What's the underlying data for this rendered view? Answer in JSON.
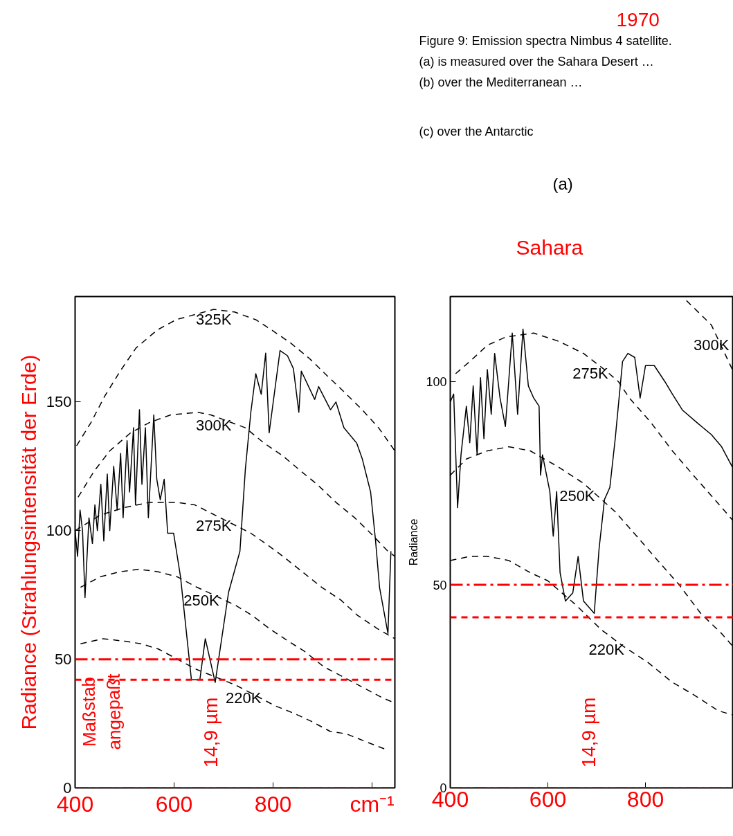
{
  "chart_data": [
    {
      "type": "line",
      "ylabel": "Radiance (Strahlungsintensität der Erde)",
      "xlim": [
        400,
        1046
      ],
      "ylim": [
        0,
        191
      ],
      "xticks": [
        400,
        600,
        800,
        {
          "value": 1000,
          "label": "cm⁻¹"
        }
      ],
      "yticks": [
        0,
        50,
        100,
        150
      ],
      "series": [
        {
          "color": "#000000",
          "line_style": "solid",
          "x": [
            400,
            405,
            410,
            415,
            420,
            428,
            435,
            440,
            445,
            452,
            458,
            465,
            470,
            478,
            485,
            492,
            497,
            505,
            510,
            518,
            522,
            530,
            535,
            542,
            548,
            559,
            565,
            572,
            580,
            587,
            599,
            613,
            635,
            652,
            663,
            683,
            710,
            733,
            744,
            755,
            765,
            776,
            785,
            792,
            814,
            829,
            841,
            852,
            857,
            884,
            892,
            916,
            927,
            943,
            969,
            980,
            997,
            1007,
            1015,
            1032,
            1038
          ],
          "values": [
            100,
            90,
            108,
            100,
            74,
            105,
            95,
            110,
            100,
            118,
            96,
            122,
            100,
            125,
            108,
            130,
            105,
            135,
            115,
            140,
            110,
            147,
            118,
            140,
            105,
            145,
            120,
            112,
            120,
            99,
            99,
            82,
            42,
            42,
            58,
            41,
            76,
            92,
            124,
            146,
            161,
            153,
            169,
            138,
            170,
            168,
            163,
            146,
            162,
            151,
            156,
            147,
            150,
            140,
            134,
            128,
            115,
            96,
            78,
            60,
            92
          ]
        },
        {
          "name": "325K",
          "color": "#000000",
          "line_style": "dashed",
          "x": [
            403,
            432,
            459,
            491,
            523,
            566,
            604,
            680,
            722,
            765,
            797,
            835,
            873,
            905,
            943,
            980,
            1013,
            1046
          ],
          "values": [
            133,
            142,
            152,
            162,
            171,
            178,
            182,
            186,
            185,
            182,
            178,
            173,
            167,
            161,
            154,
            147,
            140,
            131
          ]
        },
        {
          "name": "300K",
          "color": "#000000",
          "line_style": "dashed",
          "x": [
            406,
            438,
            470,
            512,
            550,
            593,
            648,
            674,
            744,
            782,
            820,
            857,
            889,
            927,
            965,
            997,
            1032,
            1046
          ],
          "values": [
            113,
            123,
            131,
            138,
            142,
            145,
            146,
            145,
            140,
            134,
            129,
            123,
            118,
            111,
            105,
            99,
            92,
            90
          ]
        },
        {
          "name": "275K",
          "color": "#000000",
          "line_style": "dashed",
          "x": [
            400,
            450,
            500,
            550,
            604,
            642,
            755,
            792,
            820,
            859,
            898,
            937,
            971,
            1010,
            1046
          ],
          "values": [
            100,
            106,
            109,
            111,
            111,
            110,
            99,
            94,
            90,
            84,
            78,
            73,
            67,
            62,
            58
          ]
        },
        {
          "name": "250K",
          "color": "#000000",
          "line_style": "dashed",
          "x": [
            411,
            450,
            490,
            529,
            568,
            607,
            646,
            680,
            724,
            758,
            792,
            831,
            864,
            903,
            943,
            982,
            1021,
            1046
          ],
          "values": [
            78,
            82,
            84,
            85,
            84,
            82,
            78,
            75,
            71,
            67,
            62,
            57,
            53,
            47,
            43,
            39,
            35,
            33
          ]
        },
        {
          "name": "220K",
          "color": "#000000",
          "line_style": "dashed",
          "x": [
            411,
            456,
            501,
            534,
            568,
            607,
            646,
            685,
            724,
            764,
            803,
            842,
            876,
            915,
            948,
            987,
            1027
          ],
          "values": [
            56,
            58,
            57,
            56,
            54,
            50,
            46,
            43,
            40,
            36,
            32,
            29,
            26,
            22,
            21,
            18,
            15
          ]
        }
      ],
      "ref_lines": [
        {
          "axis": "y",
          "value": 50,
          "color": "#ff0000",
          "line_style": "dashdot"
        },
        {
          "axis": "y",
          "value": 42,
          "color": "#ff0000",
          "line_style": "dashed"
        },
        {
          "axis": "y",
          "value": 0,
          "color": "#ff0000",
          "line_style": "dashdot"
        }
      ],
      "annotations": [
        "14,9 µm",
        "Maßstab\nangepaßt"
      ]
    },
    {
      "type": "line",
      "ylabel": "Radiance",
      "xlim": [
        400,
        980
      ],
      "ylim": [
        0,
        121
      ],
      "xticks": [
        400,
        600,
        800
      ],
      "yticks": [
        0,
        50,
        100
      ],
      "series": [
        {
          "color": "#000000",
          "line_style": "solid",
          "x": [
            400,
            407,
            415,
            422,
            433,
            440,
            447,
            455,
            462,
            469,
            476,
            484,
            491,
            502,
            513,
            527,
            538,
            549,
            560,
            571,
            582,
            585,
            589,
            604,
            611,
            618,
            625,
            636,
            651,
            662,
            673,
            695,
            705,
            716,
            727,
            738,
            753,
            764,
            778,
            789,
            800,
            818,
            840,
            855,
            876,
            905,
            935,
            956,
            978
          ],
          "values": [
            95,
            97,
            69,
            82,
            94,
            85,
            99,
            82,
            101,
            86,
            103,
            92,
            107,
            96,
            89,
            112,
            92,
            113,
            99,
            96,
            94,
            77,
            82,
            73,
            62,
            73,
            53,
            46,
            48,
            57,
            46,
            43,
            59,
            71,
            74,
            86,
            105,
            107,
            106,
            96,
            104,
            104,
            100,
            97,
            93,
            90,
            87,
            84,
            79
          ]
        },
        {
          "name": "300K",
          "color": "#000000",
          "line_style": "dashed",
          "x": [
            884,
            935,
            978
          ],
          "values": [
            120,
            114,
            103
          ]
        },
        {
          "name": "275K",
          "color": "#000000",
          "line_style": "dashed",
          "x": [
            411,
            440,
            476,
            513,
            571,
            622,
            673,
            716,
            745,
            767,
            811,
            855,
            898,
            942,
            978
          ],
          "values": [
            102,
            105,
            109,
            111,
            112,
            110,
            107,
            103,
            100,
            96,
            90,
            83,
            77,
            71,
            66
          ]
        },
        {
          "name": "250K",
          "color": "#000000",
          "line_style": "dashed",
          "x": [
            400,
            433,
            476,
            520,
            564,
            622,
            673,
            738,
            782,
            825,
            869,
            913,
            956,
            978
          ],
          "values": [
            77,
            81,
            83,
            84,
            83,
            79,
            75,
            68,
            62,
            56,
            50,
            43,
            38,
            35
          ]
        },
        {
          "name": "220K",
          "color": "#000000",
          "line_style": "dashed",
          "x": [
            400,
            440,
            476,
            520,
            564,
            600,
            658,
            709,
            753,
            804,
            855,
            898,
            949,
            978
          ],
          "values": [
            56,
            57,
            57,
            56,
            53,
            51,
            45,
            39,
            35,
            31,
            26,
            23,
            19,
            18
          ]
        }
      ],
      "ref_lines": [
        {
          "axis": "y",
          "value": 50,
          "color": "#ff0000",
          "line_style": "dashdot"
        },
        {
          "axis": "y",
          "value": 42,
          "color": "#ff0000",
          "line_style": "dashed"
        },
        {
          "axis": "y",
          "value": 0,
          "color": "#ff0000",
          "line_style": "dashdot"
        }
      ],
      "annotations": [
        "14,9 µm",
        "Figure 9: Emission spectra Nimbus 4 satellite.",
        "(a)  is measured over the Sahara Desert …",
        "(b)  over the Mediterranean …",
        "(c)  over the Antarctic",
        "1970",
        "(a)",
        "Sahara"
      ]
    }
  ]
}
